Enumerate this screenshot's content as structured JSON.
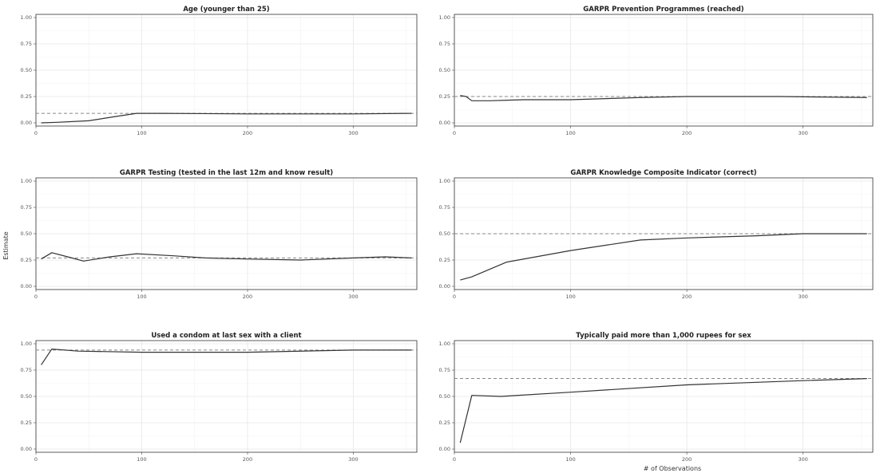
{
  "figure": {
    "xlabel": "# of Observations",
    "ylabel": "Estimate"
  },
  "chart_data": [
    {
      "type": "line",
      "title": "Age (younger than 25)",
      "xlim": [
        0,
        360
      ],
      "ylim": [
        0,
        1
      ],
      "x_ticks": [
        0,
        100,
        200,
        300
      ],
      "y_ticks": [
        0.0,
        0.25,
        0.5,
        0.75,
        1.0
      ],
      "reference_line": 0.09,
      "series": [
        {
          "x": [
            5,
            20,
            50,
            75,
            95,
            120,
            200,
            300,
            355
          ],
          "y": [
            0.0,
            0.005,
            0.02,
            0.06,
            0.09,
            0.09,
            0.085,
            0.085,
            0.09
          ]
        }
      ]
    },
    {
      "type": "line",
      "title": "GARPR Prevention Programmes (reached)",
      "xlim": [
        0,
        360
      ],
      "ylim": [
        0,
        1
      ],
      "x_ticks": [
        0,
        100,
        200,
        300
      ],
      "y_ticks": [
        0.0,
        0.25,
        0.5,
        0.75,
        1.0
      ],
      "reference_line": 0.25,
      "series": [
        {
          "x": [
            5,
            10,
            15,
            30,
            60,
            100,
            160,
            200,
            280,
            355
          ],
          "y": [
            0.26,
            0.25,
            0.21,
            0.21,
            0.22,
            0.22,
            0.24,
            0.25,
            0.25,
            0.24
          ]
        }
      ]
    },
    {
      "type": "line",
      "title": "GARPR Testing (tested in the last 12m and know result)",
      "xlim": [
        0,
        360
      ],
      "ylim": [
        0,
        1
      ],
      "x_ticks": [
        0,
        100,
        200,
        300
      ],
      "y_ticks": [
        0.0,
        0.25,
        0.5,
        0.75,
        1.0
      ],
      "reference_line": 0.27,
      "series": [
        {
          "x": [
            5,
            15,
            30,
            45,
            70,
            95,
            130,
            160,
            200,
            250,
            300,
            330,
            355
          ],
          "y": [
            0.26,
            0.32,
            0.28,
            0.24,
            0.28,
            0.31,
            0.29,
            0.27,
            0.26,
            0.25,
            0.27,
            0.28,
            0.27
          ]
        }
      ]
    },
    {
      "type": "line",
      "title": "GARPR Knowledge Composite Indicator (correct)",
      "xlim": [
        0,
        360
      ],
      "ylim": [
        0,
        1
      ],
      "x_ticks": [
        0,
        100,
        200,
        300
      ],
      "y_ticks": [
        0.0,
        0.25,
        0.5,
        0.75,
        1.0
      ],
      "reference_line": 0.5,
      "series": [
        {
          "x": [
            5,
            15,
            45,
            100,
            160,
            200,
            260,
            300,
            355
          ],
          "y": [
            0.06,
            0.09,
            0.23,
            0.34,
            0.44,
            0.46,
            0.48,
            0.5,
            0.5
          ]
        }
      ]
    },
    {
      "type": "line",
      "title": "Used a condom at last sex with a client",
      "xlim": [
        0,
        360
      ],
      "ylim": [
        0,
        1
      ],
      "x_ticks": [
        0,
        100,
        200,
        300
      ],
      "y_ticks": [
        0.0,
        0.25,
        0.5,
        0.75,
        1.0
      ],
      "reference_line": 0.94,
      "series": [
        {
          "x": [
            5,
            15,
            40,
            100,
            200,
            300,
            355
          ],
          "y": [
            0.8,
            0.95,
            0.93,
            0.92,
            0.92,
            0.94,
            0.94
          ]
        }
      ]
    },
    {
      "type": "line",
      "title": "Typically paid more than 1,000 rupees for sex",
      "xlim": [
        0,
        360
      ],
      "ylim": [
        0,
        1
      ],
      "x_ticks": [
        0,
        100,
        200,
        300
      ],
      "y_ticks": [
        0.0,
        0.25,
        0.5,
        0.75,
        1.0
      ],
      "reference_line": 0.67,
      "series": [
        {
          "x": [
            5,
            15,
            40,
            100,
            200,
            300,
            355
          ],
          "y": [
            0.06,
            0.51,
            0.5,
            0.54,
            0.61,
            0.65,
            0.67
          ]
        }
      ]
    }
  ]
}
